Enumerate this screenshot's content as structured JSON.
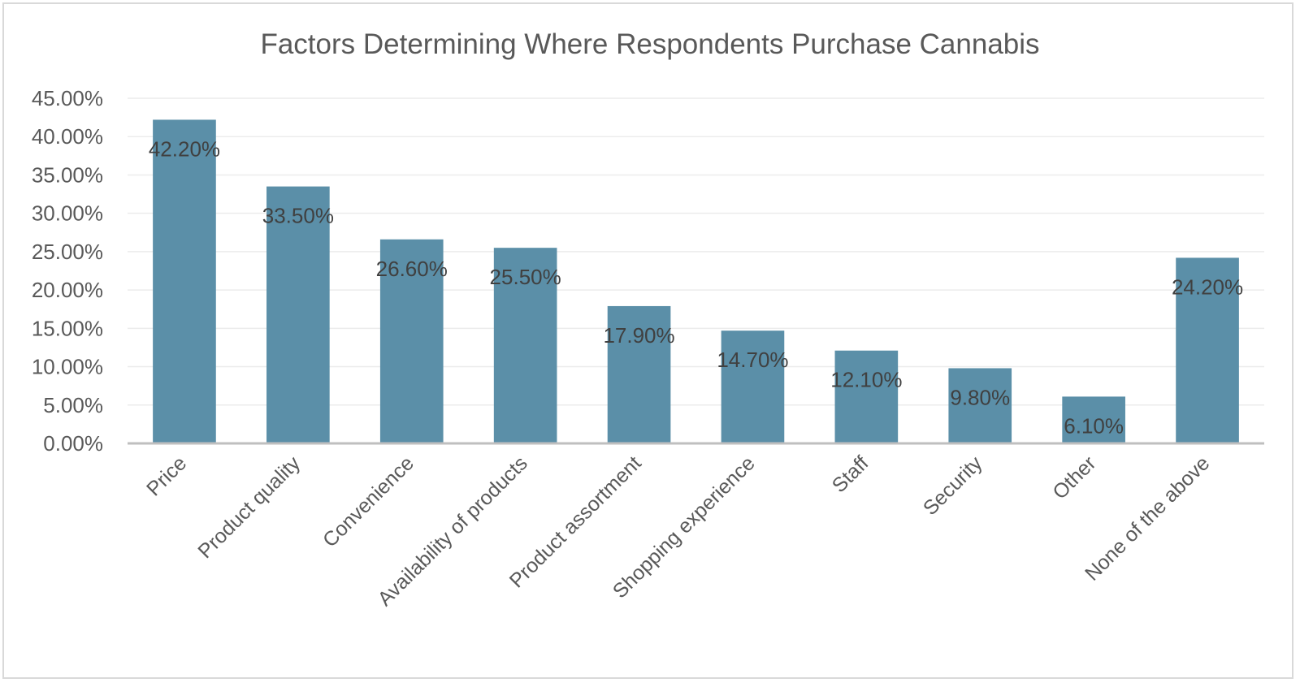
{
  "chart_data": {
    "type": "bar",
    "title": "Factors Determining Where Respondents Purchase Cannabis",
    "xlabel": "",
    "ylabel": "",
    "categories": [
      "Price",
      "Product quality",
      "Convenience",
      "Availability of products",
      "Product assortment",
      "Shopping experience",
      "Staff",
      "Security",
      "Other",
      "None of the above"
    ],
    "values": [
      42.2,
      33.5,
      26.6,
      25.5,
      17.9,
      14.7,
      12.1,
      9.8,
      6.1,
      24.2
    ],
    "data_labels": [
      "42.20%",
      "33.50%",
      "26.60%",
      "25.50%",
      "17.90%",
      "14.70%",
      "12.10%",
      "9.80%",
      "6.10%",
      "24.20%"
    ],
    "ylim": [
      0,
      45
    ],
    "yticks": [
      0,
      5,
      10,
      15,
      20,
      25,
      30,
      35,
      40,
      45
    ],
    "ytick_labels": [
      "0.00%",
      "5.00%",
      "10.00%",
      "15.00%",
      "20.00%",
      "25.00%",
      "30.00%",
      "35.00%",
      "40.00%",
      "45.00%"
    ],
    "grid": true,
    "legend": "none",
    "colors": {
      "bar": "#5b8fa8",
      "data_label": "#404040",
      "text": "#595959"
    }
  }
}
